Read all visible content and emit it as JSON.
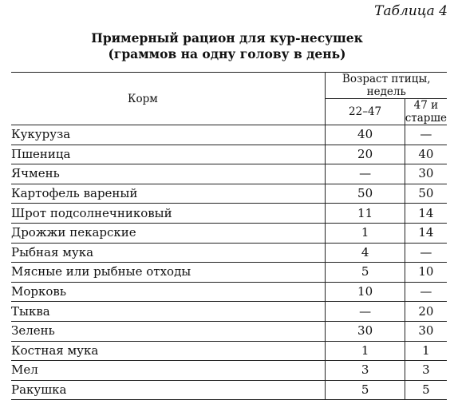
{
  "document": {
    "table_number": "Таблица 4",
    "title_line1": "Примерный рацион для кур-несушек",
    "title_line2": "(граммов на одну голову в день)"
  },
  "table": {
    "col_feed": "Корм",
    "col_age_group": "Возраст птицы, недель",
    "col_age1": "22–47",
    "col_age2": "47 и старше",
    "rows": [
      {
        "name": "Кукуруза",
        "v1": "40",
        "v2": "—"
      },
      {
        "name": "Пшеница",
        "v1": "20",
        "v2": "40"
      },
      {
        "name": "Ячмень",
        "v1": "—",
        "v2": "30"
      },
      {
        "name": "Картофель вареный",
        "v1": "50",
        "v2": "50"
      },
      {
        "name": "Шрот подсолнечниковый",
        "v1": "11",
        "v2": "14"
      },
      {
        "name": "Дрожжи пекарские",
        "v1": "1",
        "v2": "14"
      },
      {
        "name": "Рыбная мука",
        "v1": "4",
        "v2": "—"
      },
      {
        "name": "Мясные или рыбные отходы",
        "v1": "5",
        "v2": "10"
      },
      {
        "name": "Морковь",
        "v1": "10",
        "v2": "—"
      },
      {
        "name": "Тыква",
        "v1": "—",
        "v2": "20"
      },
      {
        "name": "Зелень",
        "v1": "30",
        "v2": "30"
      },
      {
        "name": "Костная мука",
        "v1": "1",
        "v2": "1"
      },
      {
        "name": "Мел",
        "v1": "3",
        "v2": "3"
      },
      {
        "name": "Ракушка",
        "v1": "5",
        "v2": "5"
      }
    ]
  }
}
